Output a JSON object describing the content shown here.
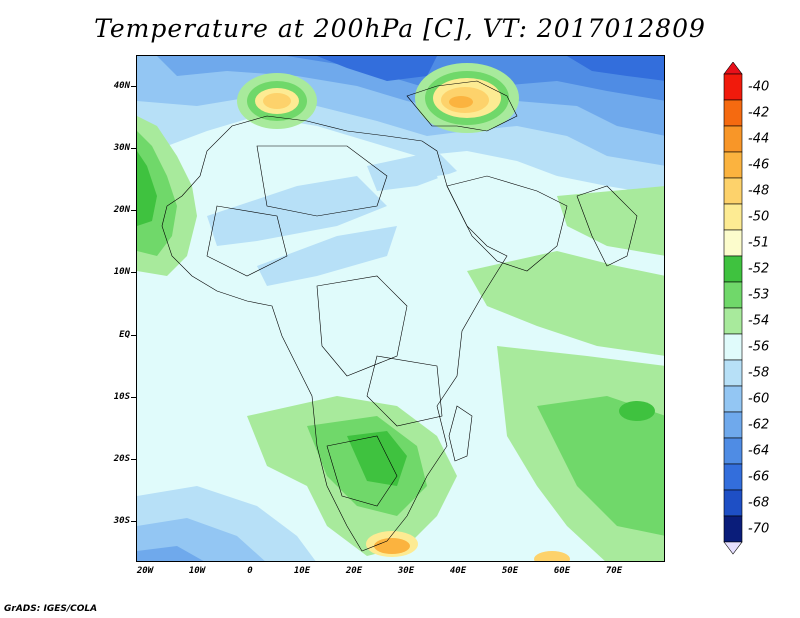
{
  "title": "Temperature at 200hPa [C], VT: 2017012809",
  "footer": "GrADS: IGES/COLA",
  "map": {
    "lat_labels": [
      "40N",
      "30N",
      "20N",
      "10N",
      "EQ",
      "10S",
      "20S",
      "30S"
    ],
    "lon_labels": [
      "20W",
      "10W",
      "0",
      "10E",
      "20E",
      "30E",
      "40E",
      "50E",
      "60E",
      "70E"
    ]
  },
  "colorbar": {
    "labels": [
      "-40",
      "-42",
      "-44",
      "-46",
      "-48",
      "-50",
      "-51",
      "-52",
      "-53",
      "-54",
      "-56",
      "-58",
      "-60",
      "-62",
      "-64",
      "-66",
      "-68",
      "-70"
    ],
    "colors": [
      "#f11a0c",
      "#f56a10",
      "#f89628",
      "#fbb33f",
      "#fdd26b",
      "#fdeb93",
      "#fcfccc",
      "#3fc23f",
      "#70d86a",
      "#a8ea9c",
      "#e0fbfb",
      "#b7e0f7",
      "#93c6f3",
      "#6fa9ec",
      "#4f8ce4",
      "#336edc",
      "#1e4fc5",
      "#0a1d7a"
    ],
    "over_color": "#e8101a",
    "under_color": "#e6e0ff"
  }
}
